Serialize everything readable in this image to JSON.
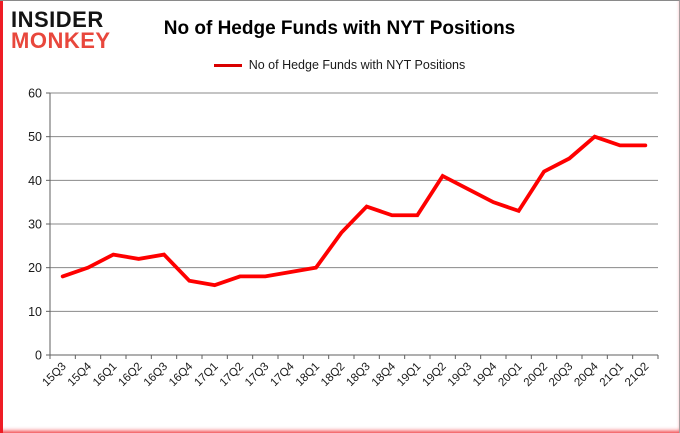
{
  "logo": {
    "line1": "INSIDER",
    "line2": "MONKEY"
  },
  "header": {
    "title": "No of Hedge Funds with NYT Positions"
  },
  "chart_data": {
    "type": "line",
    "title": "No of Hedge Funds with NYT Positions",
    "categories": [
      "15Q3",
      "15Q4",
      "16Q1",
      "16Q2",
      "16Q3",
      "16Q4",
      "17Q1",
      "17Q2",
      "17Q3",
      "17Q4",
      "18Q1",
      "18Q2",
      "18Q3",
      "18Q4",
      "19Q1",
      "19Q2",
      "19Q3",
      "19Q4",
      "20Q1",
      "20Q2",
      "20Q3",
      "20Q4",
      "21Q1",
      "21Q2"
    ],
    "series": [
      {
        "name": "No of Hedge Funds with NYT Positions",
        "color": "#fe0000",
        "values": [
          18,
          20,
          23,
          22,
          23,
          17,
          16,
          18,
          18,
          19,
          20,
          28,
          34,
          32,
          32,
          41,
          38,
          35,
          33,
          42,
          45,
          50,
          48,
          48
        ]
      }
    ],
    "xlabel": "",
    "ylabel": "",
    "ylim": [
      0,
      60
    ],
    "yticks": [
      0,
      10,
      20,
      30,
      40,
      50,
      60
    ],
    "grid": true,
    "legend_position": "top-center"
  },
  "colors": {
    "line": "#fe0000",
    "legend_swatch": "#d90000",
    "grid": "#8a8a8a",
    "axis": "#5f5f5f",
    "logo_black": "#141414",
    "logo_red": "#e8473c",
    "frame_accent": "#ee1c25"
  }
}
